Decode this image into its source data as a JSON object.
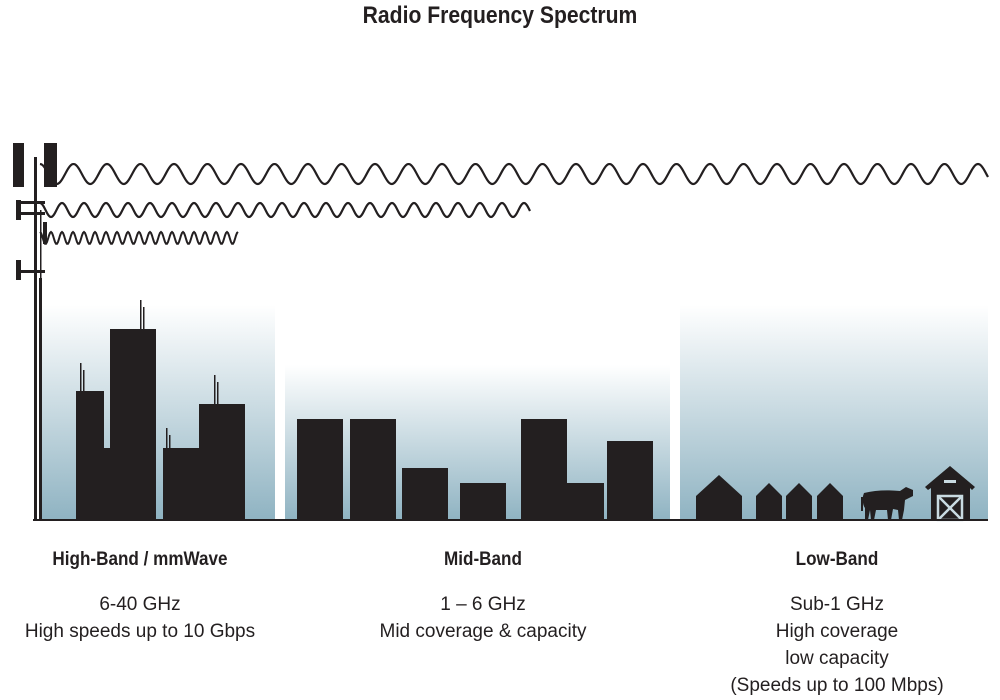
{
  "title": "Radio Frequency Spectrum",
  "bands": [
    {
      "name": "High-Band / mmWave",
      "lines": [
        "6-40 GHz",
        "High speeds up to 10 Gbps"
      ]
    },
    {
      "name": "Mid-Band",
      "lines": [
        "1 – 6 GHz",
        "Mid coverage & capacity"
      ]
    },
    {
      "name": "Low-Band",
      "lines": [
        "Sub-1 GHz",
        "High coverage",
        "low capacity",
        "(Speeds up to 100 Mbps)"
      ]
    }
  ],
  "colors": {
    "ink": "#231f20",
    "sky_bottom": "#8fb3c2",
    "sky_top": "#ffffff"
  },
  "icons": [
    "cell-tower-icon",
    "skyscraper-icon",
    "office-building-icon",
    "house-icon",
    "cow-icon",
    "barn-icon"
  ]
}
